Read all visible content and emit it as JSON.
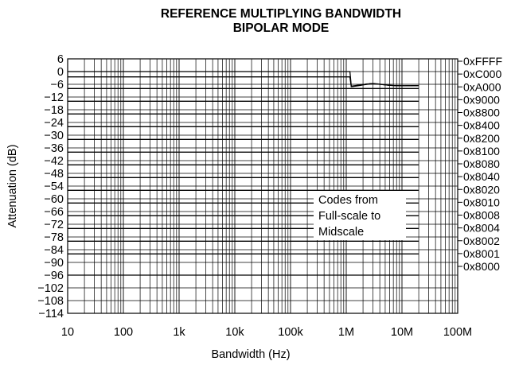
{
  "chart_data": {
    "type": "line",
    "title": [
      "REFERENCE MULTIPLYING BANDWIDTH",
      "BIPOLAR MODE"
    ],
    "xlabel": "Bandwidth (Hz)",
    "ylabel": "Attenuation (dB)",
    "x_scale": "log",
    "xlim": [
      10,
      100000000
    ],
    "ylim": [
      -114,
      6
    ],
    "grid": true,
    "x_ticks": [
      {
        "value": 10,
        "label": "10"
      },
      {
        "value": 100,
        "label": "100"
      },
      {
        "value": 1000,
        "label": "1k"
      },
      {
        "value": 10000,
        "label": "10k"
      },
      {
        "value": 100000,
        "label": "100k"
      },
      {
        "value": 1000000,
        "label": "1M"
      },
      {
        "value": 10000000,
        "label": "10M"
      },
      {
        "value": 100000000,
        "label": "100M"
      }
    ],
    "y_ticks": [
      {
        "value": 6,
        "label": "6"
      },
      {
        "value": 0,
        "label": "0"
      },
      {
        "value": -6,
        "label": "−6"
      },
      {
        "value": -12,
        "label": "−12"
      },
      {
        "value": -18,
        "label": "−18"
      },
      {
        "value": -24,
        "label": "−24"
      },
      {
        "value": -30,
        "label": "−30"
      },
      {
        "value": -36,
        "label": "−36"
      },
      {
        "value": -42,
        "label": "−42"
      },
      {
        "value": -48,
        "label": "−48"
      },
      {
        "value": -54,
        "label": "−54"
      },
      {
        "value": -60,
        "label": "−60"
      },
      {
        "value": -66,
        "label": "−66"
      },
      {
        "value": -72,
        "label": "−72"
      },
      {
        "value": -78,
        "label": "−78"
      },
      {
        "value": -84,
        "label": "−84"
      },
      {
        "value": -90,
        "label": "−90"
      },
      {
        "value": -96,
        "label": "−96"
      },
      {
        "value": -102,
        "label": "−102"
      },
      {
        "value": -108,
        "label": "−108"
      },
      {
        "value": -114,
        "label": "−114"
      }
    ],
    "annotation": [
      "Codes from",
      "Full-scale to",
      "Midscale"
    ],
    "series": [
      {
        "name": "0xFFFF",
        "level": 0
      },
      {
        "name": "0xC000",
        "level": -2.5
      },
      {
        "name": "0xA000",
        "level": -8
      },
      {
        "name": "0x9000",
        "level": -14
      },
      {
        "name": "0x8800",
        "level": -20
      },
      {
        "name": "0x8400",
        "level": -26
      },
      {
        "name": "0x8200",
        "level": -32
      },
      {
        "name": "0x8100",
        "level": -38
      },
      {
        "name": "0x8080",
        "level": -44
      },
      {
        "name": "0x8040",
        "level": -50
      },
      {
        "name": "0x8020",
        "level": -56
      },
      {
        "name": "0x8010",
        "level": -62
      },
      {
        "name": "0x8008",
        "level": -68
      },
      {
        "name": "0x8004",
        "level": -74
      },
      {
        "name": "0x8002",
        "level": -80
      },
      {
        "name": "0x8001",
        "level": -86
      },
      {
        "name": "0x8000",
        "level": -96
      }
    ],
    "line_color": "#000000"
  }
}
